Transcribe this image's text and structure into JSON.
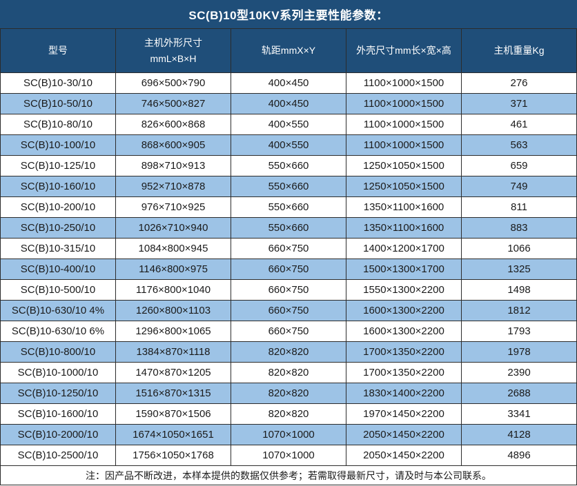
{
  "table": {
    "title": "SC(B)10型10KV系列主要性能参数：",
    "columns": [
      "型号",
      "主机外形尺寸\nmmL×B×H",
      "轨距mmX×Y",
      "外壳尺寸mm长×宽×高",
      "主机重量Kg"
    ],
    "rows": [
      [
        "SC(B)10-30/10",
        "696×500×790",
        "400×450",
        "1100×1000×1500",
        "276"
      ],
      [
        "SC(B)10-50/10",
        "746×500×827",
        "400×450",
        "1100×1000×1500",
        "371"
      ],
      [
        "SC(B)10-80/10",
        "826×600×868",
        "400×550",
        "1100×1000×1500",
        "461"
      ],
      [
        "SC(B)10-100/10",
        "868×600×905",
        "400×550",
        "1100×1000×1500",
        "563"
      ],
      [
        "SC(B)10-125/10",
        "898×710×913",
        "550×660",
        "1250×1050×1500",
        "659"
      ],
      [
        "SC(B)10-160/10",
        "952×710×878",
        "550×660",
        "1250×1050×1500",
        "749"
      ],
      [
        "SC(B)10-200/10",
        "976×710×925",
        "550×660",
        "1350×1100×1600",
        "811"
      ],
      [
        "SC(B)10-250/10",
        "1026×710×940",
        "550×660",
        "1350×1100×1600",
        "883"
      ],
      [
        "SC(B)10-315/10",
        "1084×800×945",
        "660×750",
        "1400×1200×1700",
        "1066"
      ],
      [
        "SC(B)10-400/10",
        "1146×800×975",
        "660×750",
        "1500×1300×1700",
        "1325"
      ],
      [
        "SC(B)10-500/10",
        "1176×800×1040",
        "660×750",
        "1550×1300×2200",
        "1498"
      ],
      [
        "SC(B)10-630/10 4%",
        "1260×800×1103",
        "660×750",
        "1600×1300×2200",
        "1812"
      ],
      [
        "SC(B)10-630/10 6%",
        "1296×800×1065",
        "660×750",
        "1600×1300×2200",
        "1793"
      ],
      [
        "SC(B)10-800/10",
        "1384×870×1118",
        "820×820",
        "1700×1350×2200",
        "1978"
      ],
      [
        "SC(B)10-1000/10",
        "1470×870×1205",
        "820×820",
        "1700×1350×2200",
        "2390"
      ],
      [
        "SC(B)10-1250/10",
        "1516×870×1315",
        "820×820",
        "1830×1400×2200",
        "2688"
      ],
      [
        "SC(B)10-1600/10",
        "1590×870×1506",
        "820×820",
        "1970×1450×2200",
        "3341"
      ],
      [
        "SC(B)10-2000/10",
        "1674×1050×1651",
        "1070×1000",
        "2050×1450×2200",
        "4128"
      ],
      [
        "SC(B)10-2500/10",
        "1756×1050×1768",
        "1070×1000",
        "2050×1450×2200",
        "4896"
      ]
    ],
    "note": "注：因产品不断改进，本样本提供的数据仅供参考；若需取得最新尺寸，请及时与本公司联系。"
  },
  "colors": {
    "header_bg": "#1F4E79",
    "alt_row_bg": "#9DC3E6",
    "row_bg": "#FFFFFF",
    "border": "#2B2B2B",
    "header_text": "#FFFFFF",
    "body_text": "#1A1A1A"
  }
}
